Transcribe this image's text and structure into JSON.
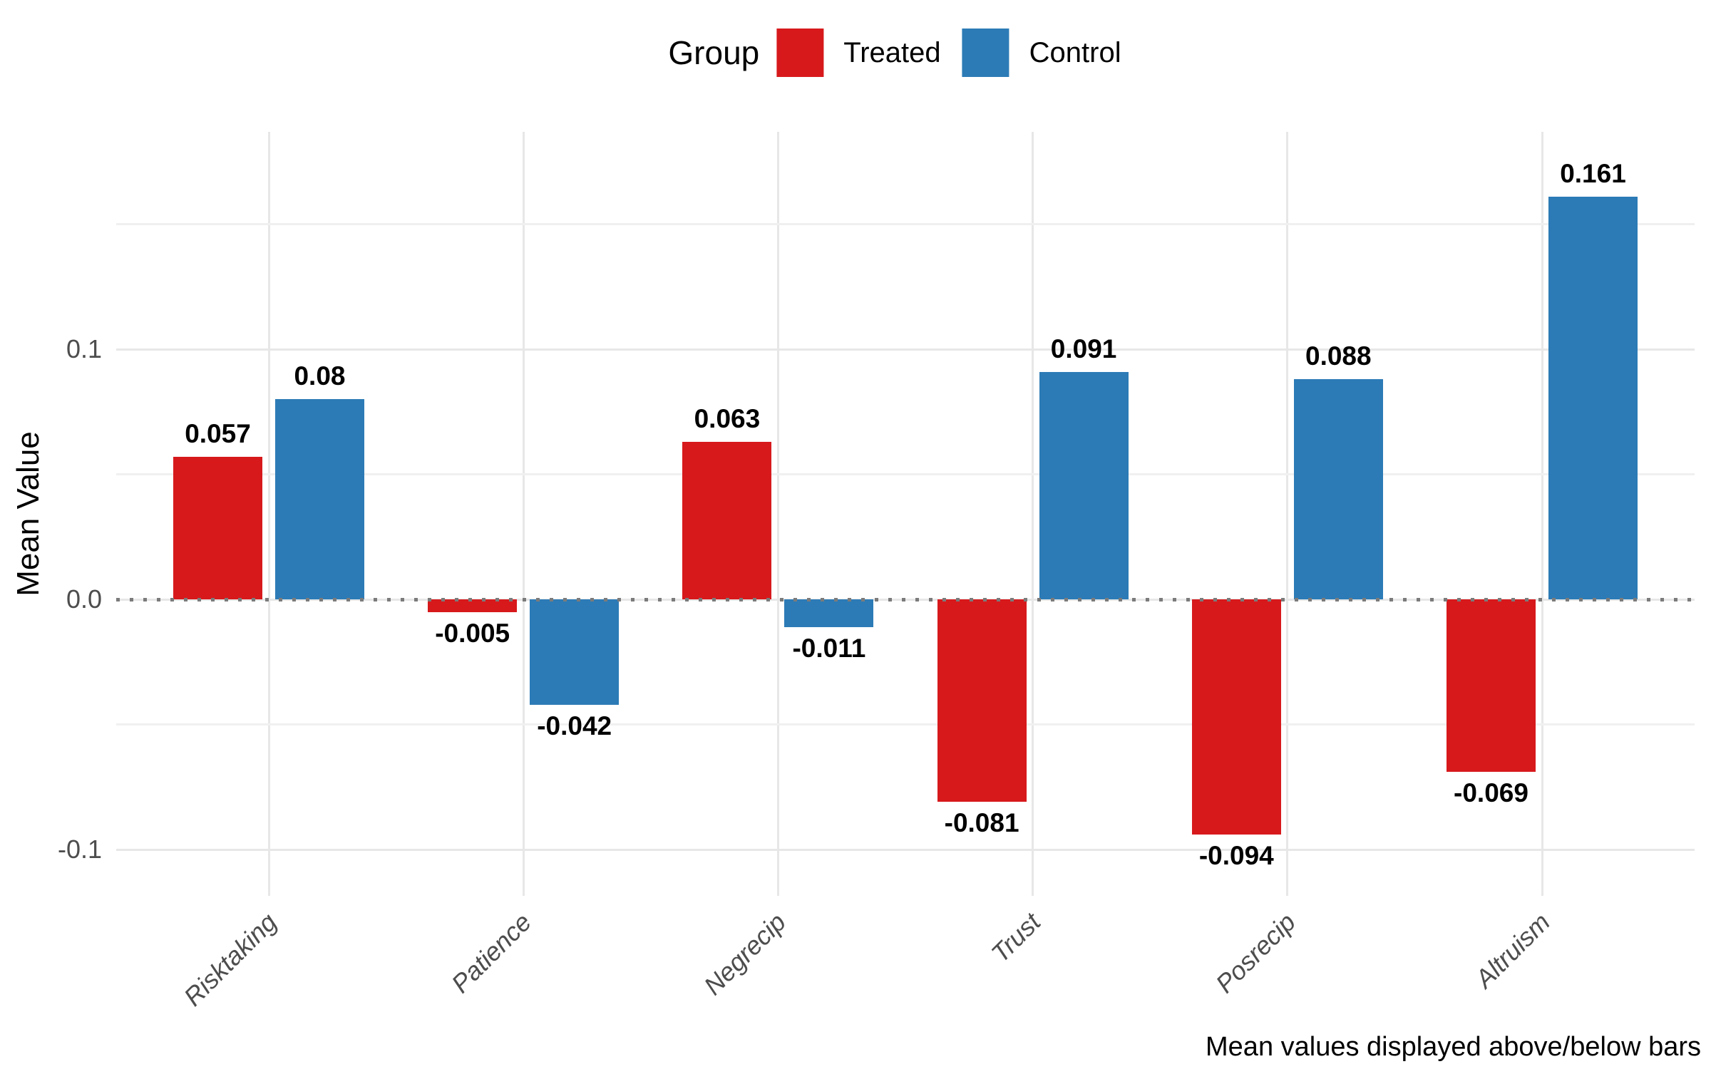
{
  "chart_data": {
    "type": "bar",
    "legend": {
      "title": "Group",
      "position": "top-center"
    },
    "categories": [
      "Risktaking",
      "Patience",
      "Negrecip",
      "Trust",
      "Posrecip",
      "Altruism"
    ],
    "series": [
      {
        "name": "Treated",
        "color": "#d7191c",
        "values": [
          0.057,
          -0.005,
          0.063,
          -0.081,
          -0.094,
          -0.069
        ],
        "labels": [
          "0.057",
          "-0.005",
          "0.063",
          "-0.081",
          "-0.094",
          "-0.069"
        ]
      },
      {
        "name": "Control",
        "color": "#2c7bb6",
        "values": [
          0.08,
          -0.042,
          -0.011,
          0.091,
          0.088,
          0.161
        ],
        "labels": [
          "0.08",
          "-0.042",
          "-0.011",
          "0.091",
          "0.088",
          "0.161"
        ]
      }
    ],
    "xlabel": "",
    "ylabel": "Mean Value",
    "yticks": [
      {
        "value": 0.1,
        "label": "0.1"
      },
      {
        "value": 0.0,
        "label": "0.0"
      },
      {
        "value": -0.1,
        "label": "-0.1"
      }
    ],
    "minor_gridlines": [
      0.15,
      0.05,
      -0.05
    ],
    "ylim": [
      -0.1185,
      0.187
    ],
    "zero_line_style": "dotted",
    "grid": true,
    "caption": "Mean values displayed above/below bars",
    "colors": {
      "treated": "#d7191c",
      "control": "#2c7bb6",
      "grid_major": "#e7e7e7",
      "grid_minor": "#f0f0f0",
      "zero_line": "#7b7b7b",
      "axis_text": "#4d4d4d",
      "label_text": "#000000"
    }
  }
}
